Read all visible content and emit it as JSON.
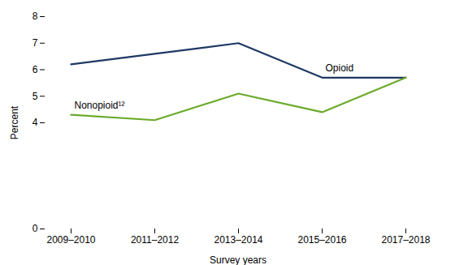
{
  "chart_data": {
    "type": "line",
    "categories": [
      "2009–2010",
      "2011–2012",
      "2013–2014",
      "2015–2016",
      "2017–2018"
    ],
    "series": [
      {
        "name": "Opioid",
        "color": "#1f3864",
        "values": [
          6.2,
          6.6,
          7.0,
          5.7,
          5.7
        ]
      },
      {
        "name": "Nonopioid¹²",
        "color": "#6aaa2a",
        "values": [
          4.3,
          4.1,
          5.1,
          4.4,
          5.7
        ]
      }
    ],
    "xlabel": "Survey years",
    "ylabel": "Percent",
    "ylim": [
      0,
      8
    ],
    "yticks": [
      0,
      4,
      5,
      6,
      7,
      8
    ]
  }
}
